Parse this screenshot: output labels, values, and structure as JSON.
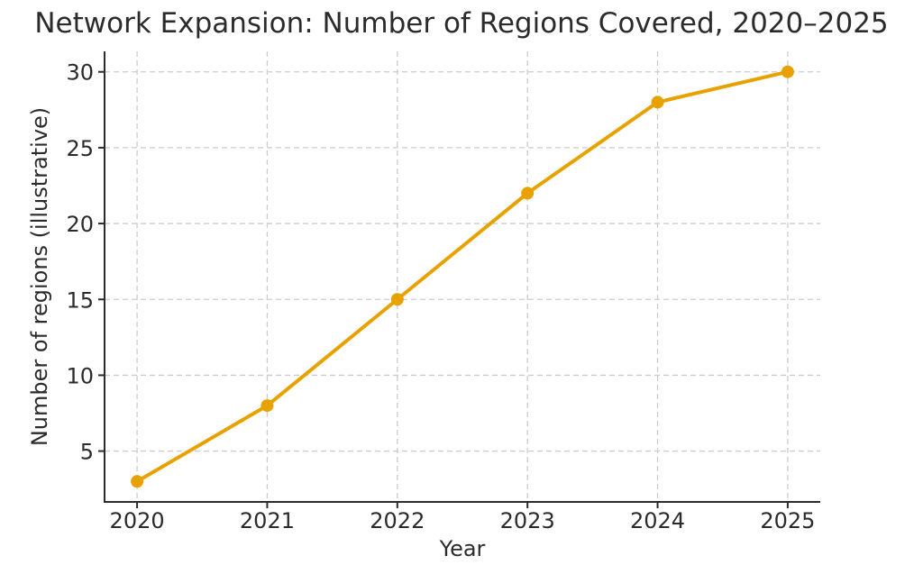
{
  "chart_data": {
    "type": "line",
    "title": "Network Expansion: Number of Regions Covered, 2020–2025",
    "xlabel": "Year",
    "ylabel": "Number of regions (illustrative)",
    "x": [
      2020,
      2021,
      2022,
      2023,
      2024,
      2025
    ],
    "xtick_labels": [
      "2020",
      "2021",
      "2022",
      "2023",
      "2024",
      "2025"
    ],
    "yticks": [
      5,
      10,
      15,
      20,
      25,
      30
    ],
    "ytick_labels": [
      "5",
      "10",
      "15",
      "20",
      "25",
      "30"
    ],
    "xlim": [
      2019.75,
      2025.25
    ],
    "ylim": [
      1.65,
      31.35
    ],
    "grid": true,
    "grid_style": "dashed",
    "legend": "none",
    "series": [
      {
        "name": "Regions covered",
        "marker": "circle",
        "color": "#E8A200",
        "values": [
          3,
          8,
          15,
          22,
          28,
          30
        ]
      }
    ]
  },
  "style": {
    "background": "#ffffff",
    "line_color": "#E8A200",
    "grid_color": "#cccccc",
    "axis_color": "#2b2b2b",
    "text_color": "#2b2b2b"
  }
}
